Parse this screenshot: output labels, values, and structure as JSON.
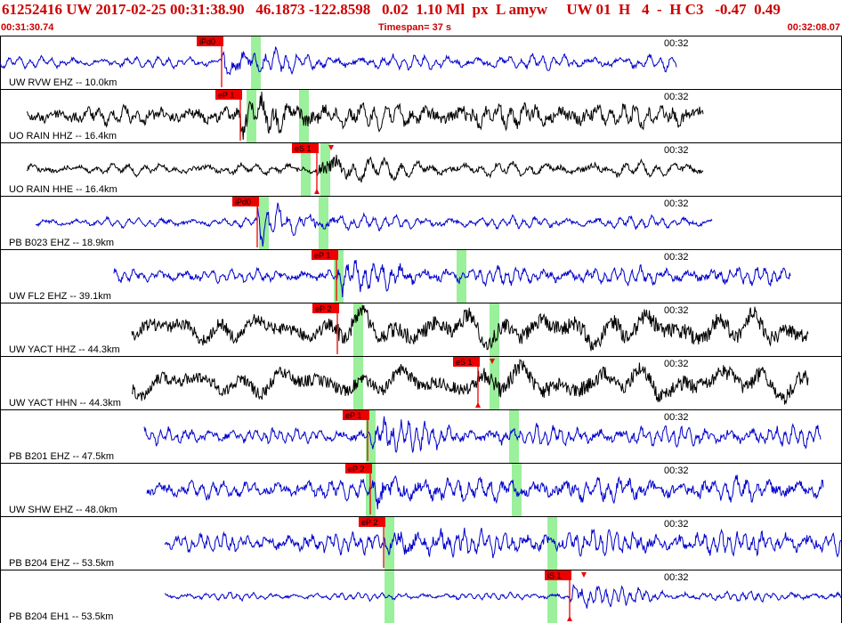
{
  "header": {
    "title": "61252416 UW 2017-02-25 00:31:38.90   46.1873 -122.8598   0.02  1.10 Ml  px  L amyw     UW 01  H   4  -  H C3   -0.47  0.49",
    "start_time": "00:31:30.74",
    "timespan": "Timespan=  37 s",
    "end_time": "00:32:08.07"
  },
  "chart_data": {
    "type": "line",
    "x_range": [
      "00:31:30.74",
      "00:32:08.07"
    ],
    "timespan_s": 37,
    "time_tick_label": "00:32",
    "grid": false,
    "colors": {
      "blue": "#0000cc",
      "black": "#000000",
      "pick": "#ee0000",
      "window": "#90ee90",
      "frame": "#000000"
    },
    "traces": [
      {
        "label": "UW RVW EHZ -- 10.0km",
        "color": "blue",
        "start": 0,
        "end": 760,
        "amp": 6,
        "burst_amp": 22,
        "noise": 0.5,
        "period": 12,
        "arrival": 249,
        "green": [
          287
        ],
        "picks": [
          {
            "label": "iPd0",
            "x": 249,
            "arrow": false
          }
        ]
      },
      {
        "label": "UO RAIN HHZ -- 16.4km",
        "color": "black",
        "start": 30,
        "end": 790,
        "amp": 9,
        "burst_amp": 22,
        "noise": 0.9,
        "period": 14,
        "arrival": 270,
        "green": [
          282,
          341
        ],
        "picks": [
          {
            "label": "eP 1",
            "x": 270,
            "arrow": false
          }
        ]
      },
      {
        "label": "UO RAIN HHE -- 16.4km",
        "color": "black",
        "start": 30,
        "end": 790,
        "amp": 6,
        "burst_amp": 22,
        "noise": 0.6,
        "period": 18,
        "arrival": 356,
        "green": [
          343,
          365
        ],
        "picks": [
          {
            "label": "eS 1",
            "x": 356,
            "arrow": true
          }
        ]
      },
      {
        "label": "PB B023 EHZ -- 18.9km",
        "color": "blue",
        "start": 40,
        "end": 800,
        "amp": 5,
        "burst_amp": 24,
        "noise": 0.5,
        "period": 12,
        "arrival": 289,
        "green": [
          296,
          363
        ],
        "picks": [
          {
            "label": "iPd0",
            "x": 289,
            "arrow": false
          }
        ]
      },
      {
        "label": "UW FL2 EHZ -- 39.1km",
        "color": "blue",
        "start": 128,
        "end": 888,
        "amp": 7,
        "burst_amp": 22,
        "noise": 0.6,
        "period": 10,
        "arrival": 378,
        "green": [
          380,
          518
        ],
        "picks": [
          {
            "label": "eP 1",
            "x": 378,
            "arrow": false
          }
        ]
      },
      {
        "label": "UW YACT HHZ -- 44.3km",
        "color": "black",
        "start": 148,
        "end": 908,
        "amp": 14,
        "burst_amp": 22,
        "noise": 0.8,
        "period": 40,
        "arrival": 379,
        "green": [
          402,
          555
        ],
        "picks": [
          {
            "label": "eP 2",
            "x": 379,
            "arrow": false
          }
        ]
      },
      {
        "label": "UW YACT HHN -- 44.3km",
        "color": "black",
        "start": 148,
        "end": 908,
        "amp": 14,
        "burst_amp": 22,
        "noise": 0.8,
        "period": 45,
        "arrival": 537,
        "green": [
          402,
          555
        ],
        "picks": [
          {
            "label": "eS 1",
            "x": 537,
            "arrow": true
          }
        ]
      },
      {
        "label": "PB B201 EHZ -- 47.5km",
        "color": "blue",
        "start": 162,
        "end": 922,
        "amp": 8,
        "burst_amp": 22,
        "noise": 0.6,
        "period": 9,
        "arrival": 413,
        "green": [
          416,
          577
        ],
        "picks": [
          {
            "label": "eP 1",
            "x": 413,
            "arrow": false
          }
        ]
      },
      {
        "label": "UW SHW EHZ -- 48.0km",
        "color": "blue",
        "start": 165,
        "end": 925,
        "amp": 9,
        "burst_amp": 22,
        "noise": 0.7,
        "period": 12,
        "arrival": 416,
        "green": [
          416,
          580
        ],
        "picks": [
          {
            "label": "eP 2",
            "x": 416,
            "arrow": false
          }
        ]
      },
      {
        "label": "PB B204 EHZ -- 53.5km",
        "color": "blue",
        "start": 185,
        "end": 945,
        "amp": 10,
        "burst_amp": 22,
        "noise": 0.6,
        "period": 9,
        "arrival": 431,
        "green": [
          437,
          620
        ],
        "picks": [
          {
            "label": "eP 2",
            "x": 431,
            "arrow": false
          }
        ]
      },
      {
        "label": "PB B204 EH1 -- 53.5km",
        "color": "blue",
        "start": 185,
        "end": 945,
        "amp": 4,
        "burst_amp": 18,
        "noise": 0.5,
        "period": 9,
        "arrival": 640,
        "green": [
          437,
          620
        ],
        "picks": [
          {
            "label": "iS 1",
            "x": 640,
            "arrow": true
          }
        ]
      }
    ]
  }
}
